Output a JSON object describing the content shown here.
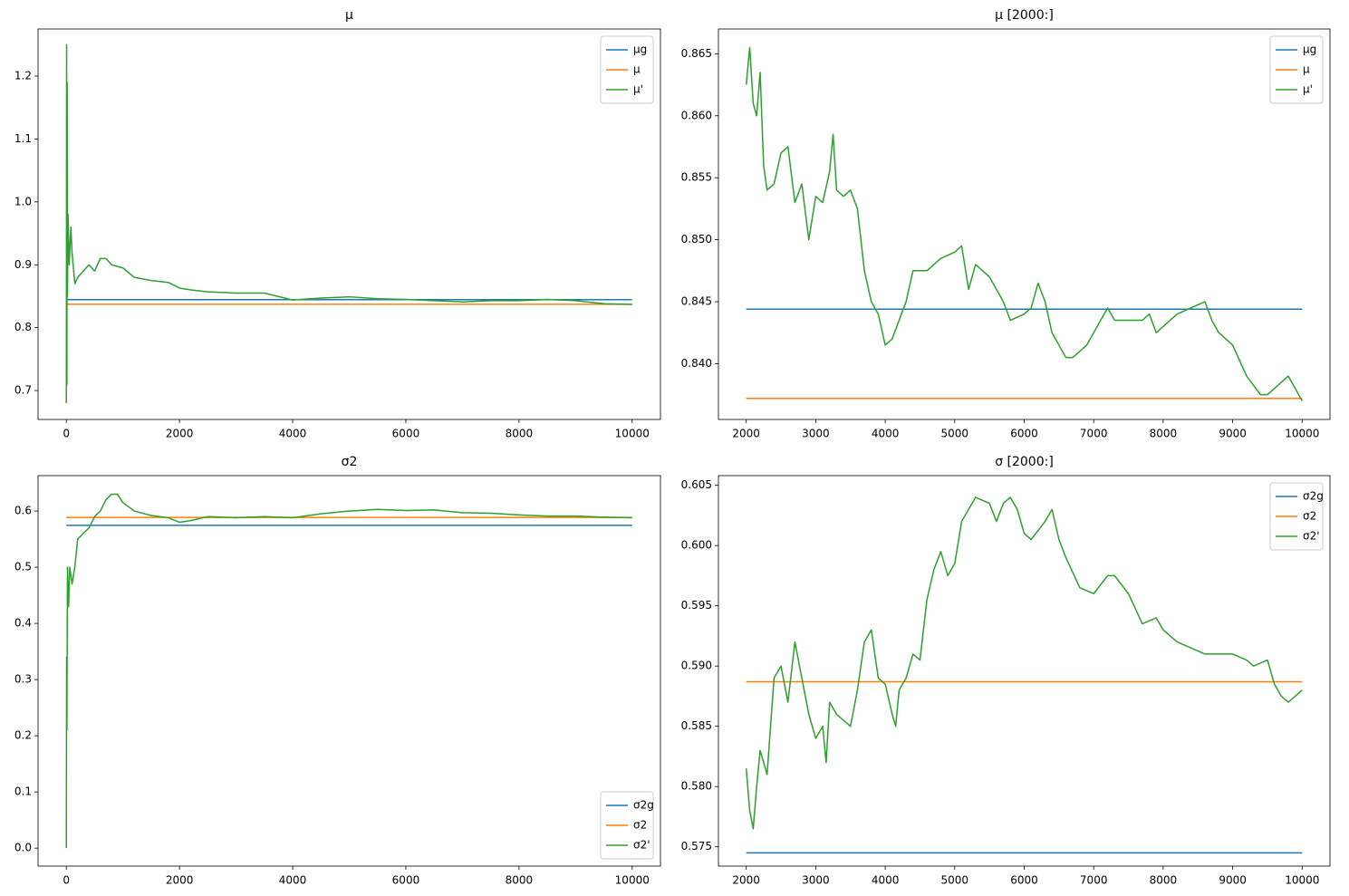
{
  "chart_data": [
    {
      "type": "line",
      "title": "μ",
      "xlim": [
        -500,
        10500
      ],
      "ylim": [
        0.654,
        1.275
      ],
      "xticks": [
        0,
        2000,
        4000,
        6000,
        8000,
        10000
      ],
      "yticks": [
        0.7,
        0.8,
        0.9,
        {
          "value": 1,
          "label": "1.0"
        },
        1.1,
        1.2
      ],
      "legend": "upper right",
      "series": [
        {
          "name": "μg",
          "color": "#1f77b4",
          "x": [
            0,
            9999
          ],
          "values": [
            0.8445,
            0.8445
          ]
        },
        {
          "name": "μ",
          "color": "#ff7f0e",
          "x": [
            0,
            9999
          ],
          "values": [
            0.8372,
            0.8372
          ]
        },
        {
          "name": "μ'",
          "color": "#2ca02c",
          "x": [
            0,
            5,
            10,
            15,
            20,
            30,
            50,
            80,
            100,
            150,
            200,
            300,
            400,
            500,
            600,
            700,
            800,
            1000,
            1200,
            1500,
            1800,
            2000,
            2200,
            2500,
            3000,
            3500,
            4000,
            4500,
            5000,
            5500,
            6000,
            6500,
            7000,
            7500,
            8000,
            8500,
            9000,
            9500,
            9999
          ],
          "values": [
            0.68,
            1.25,
            0.71,
            1.19,
            0.85,
            0.98,
            0.9,
            0.96,
            0.92,
            0.87,
            0.88,
            0.89,
            0.9,
            0.89,
            0.91,
            0.91,
            0.9,
            0.895,
            0.88,
            0.875,
            0.872,
            0.863,
            0.86,
            0.857,
            0.855,
            0.855,
            0.844,
            0.847,
            0.849,
            0.846,
            0.845,
            0.843,
            0.841,
            0.843,
            0.843,
            0.845,
            0.843,
            0.838,
            0.837
          ]
        }
      ]
    },
    {
      "type": "line",
      "title": "μ [2000:]",
      "xlim": [
        1600,
        10400
      ],
      "ylim": [
        0.8355,
        0.867
      ],
      "xticks": [
        2000,
        3000,
        4000,
        5000,
        6000,
        7000,
        8000,
        9000,
        10000
      ],
      "yticks": [
        {
          "value": 0.84,
          "label": "0.840"
        },
        0.845,
        {
          "value": 0.85,
          "label": "0.850"
        },
        0.855,
        {
          "value": 0.86,
          "label": "0.860"
        },
        0.865
      ],
      "legend": "upper right",
      "series": [
        {
          "name": "μg",
          "color": "#1f77b4",
          "x": [
            2000,
            9999
          ],
          "values": [
            0.8444,
            0.8444
          ]
        },
        {
          "name": "μ",
          "color": "#ff7f0e",
          "x": [
            2000,
            9999
          ],
          "values": [
            0.8372,
            0.8372
          ]
        },
        {
          "name": "μ'",
          "color": "#2ca02c",
          "x": [
            2000,
            2050,
            2100,
            2150,
            2200,
            2250,
            2300,
            2400,
            2500,
            2600,
            2700,
            2800,
            2900,
            3000,
            3100,
            3200,
            3250,
            3300,
            3400,
            3500,
            3600,
            3700,
            3800,
            3900,
            4000,
            4100,
            4200,
            4300,
            4400,
            4600,
            4800,
            5000,
            5100,
            5200,
            5300,
            5500,
            5700,
            5800,
            6000,
            6100,
            6200,
            6300,
            6400,
            6500,
            6600,
            6700,
            6900,
            7000,
            7200,
            7300,
            7500,
            7700,
            7800,
            7900,
            8000,
            8200,
            8400,
            8600,
            8700,
            8800,
            9000,
            9200,
            9400,
            9500,
            9700,
            9800,
            9900,
            9999
          ],
          "values": [
            0.8625,
            0.8655,
            0.861,
            0.86,
            0.8635,
            0.856,
            0.854,
            0.8545,
            0.857,
            0.8575,
            0.853,
            0.8545,
            0.85,
            0.8535,
            0.853,
            0.8555,
            0.8585,
            0.854,
            0.8535,
            0.854,
            0.8525,
            0.8475,
            0.845,
            0.844,
            0.8415,
            0.842,
            0.8435,
            0.845,
            0.8475,
            0.8475,
            0.8485,
            0.849,
            0.8495,
            0.846,
            0.848,
            0.847,
            0.845,
            0.8435,
            0.844,
            0.8445,
            0.8465,
            0.845,
            0.8425,
            0.8415,
            0.8405,
            0.8405,
            0.8415,
            0.8425,
            0.8445,
            0.8435,
            0.8435,
            0.8435,
            0.844,
            0.8425,
            0.843,
            0.844,
            0.8445,
            0.845,
            0.8435,
            0.8425,
            0.8415,
            0.839,
            0.8375,
            0.8375,
            0.8385,
            0.839,
            0.838,
            0.837
          ]
        }
      ]
    },
    {
      "type": "line",
      "title": "σ2",
      "xlim": [
        -500,
        10500
      ],
      "ylim": [
        -0.032,
        0.663
      ],
      "xticks": [
        0,
        2000,
        4000,
        6000,
        8000,
        10000
      ],
      "yticks": [
        {
          "value": 0,
          "label": "0.0"
        },
        0.1,
        0.2,
        0.3,
        0.4,
        0.5,
        0.6
      ],
      "legend": "lower right",
      "series": [
        {
          "name": "σ2g",
          "color": "#1f77b4",
          "x": [
            0,
            9999
          ],
          "values": [
            0.5745,
            0.5745
          ]
        },
        {
          "name": "σ2",
          "color": "#ff7f0e",
          "x": [
            0,
            9999
          ],
          "values": [
            0.5887,
            0.5887
          ]
        },
        {
          "name": "σ2'",
          "color": "#2ca02c",
          "x": [
            0,
            5,
            10,
            20,
            40,
            60,
            100,
            150,
            200,
            300,
            400,
            500,
            600,
            700,
            800,
            900,
            1000,
            1200,
            1500,
            1800,
            2000,
            2200,
            2500,
            3000,
            3500,
            4000,
            4500,
            5000,
            5500,
            6000,
            6500,
            7000,
            7500,
            8000,
            8500,
            9000,
            9500,
            9999
          ],
          "values": [
            0,
            0.34,
            0.21,
            0.5,
            0.43,
            0.5,
            0.47,
            0.5,
            0.55,
            0.56,
            0.57,
            0.59,
            0.6,
            0.62,
            0.63,
            0.63,
            0.615,
            0.6,
            0.592,
            0.588,
            0.58,
            0.583,
            0.59,
            0.588,
            0.59,
            0.588,
            0.595,
            0.6,
            0.603,
            0.601,
            0.602,
            0.597,
            0.596,
            0.593,
            0.591,
            0.591,
            0.589,
            0.588
          ]
        }
      ]
    },
    {
      "type": "line",
      "title": "σ [2000:]",
      "xlim": [
        1600,
        10400
      ],
      "ylim": [
        0.5734,
        0.6058
      ],
      "xticks": [
        2000,
        3000,
        4000,
        5000,
        6000,
        7000,
        8000,
        9000,
        10000
      ],
      "yticks": [
        0.575,
        {
          "value": 0.58,
          "label": "0.580"
        },
        0.585,
        {
          "value": 0.59,
          "label": "0.590"
        },
        0.595,
        {
          "value": 0.6,
          "label": "0.600"
        },
        0.605
      ],
      "legend": "upper right",
      "series": [
        {
          "name": "σ2g",
          "color": "#1f77b4",
          "x": [
            2000,
            9999
          ],
          "values": [
            0.5745,
            0.5745
          ]
        },
        {
          "name": "σ2",
          "color": "#ff7f0e",
          "x": [
            2000,
            9999
          ],
          "values": [
            0.5887,
            0.5887
          ]
        },
        {
          "name": "σ2'",
          "color": "#2ca02c",
          "x": [
            2000,
            2050,
            2100,
            2150,
            2200,
            2300,
            2400,
            2500,
            2600,
            2700,
            2800,
            2900,
            3000,
            3100,
            3150,
            3200,
            3300,
            3400,
            3500,
            3600,
            3700,
            3800,
            3900,
            4000,
            4100,
            4150,
            4200,
            4300,
            4400,
            4500,
            4600,
            4700,
            4800,
            4900,
            5000,
            5100,
            5200,
            5300,
            5500,
            5600,
            5700,
            5800,
            5900,
            6000,
            6100,
            6300,
            6400,
            6500,
            6600,
            6800,
            7000,
            7200,
            7300,
            7500,
            7700,
            7900,
            8000,
            8200,
            8400,
            8600,
            8800,
            9000,
            9200,
            9300,
            9500,
            9600,
            9700,
            9800,
            9900,
            9999
          ],
          "values": [
            0.5815,
            0.578,
            0.5765,
            0.58,
            0.583,
            0.581,
            0.589,
            0.59,
            0.587,
            0.592,
            0.589,
            0.586,
            0.584,
            0.585,
            0.582,
            0.587,
            0.586,
            0.5855,
            0.585,
            0.588,
            0.592,
            0.593,
            0.589,
            0.5885,
            0.586,
            0.585,
            0.588,
            0.589,
            0.591,
            0.5905,
            0.5955,
            0.598,
            0.5995,
            0.5975,
            0.5985,
            0.602,
            0.603,
            0.604,
            0.6035,
            0.602,
            0.6035,
            0.604,
            0.603,
            0.601,
            0.6005,
            0.602,
            0.603,
            0.6005,
            0.599,
            0.5965,
            0.596,
            0.5975,
            0.5975,
            0.596,
            0.5935,
            0.594,
            0.593,
            0.592,
            0.5915,
            0.591,
            0.591,
            0.591,
            0.5905,
            0.59,
            0.5905,
            0.5885,
            0.5875,
            0.587,
            0.5875,
            0.588
          ]
        }
      ]
    }
  ]
}
